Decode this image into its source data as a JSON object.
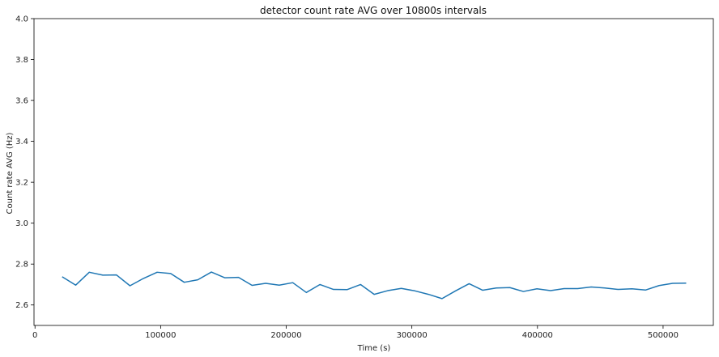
{
  "chart_data": {
    "type": "line",
    "title": "detector count rate AVG over 10800s intervals",
    "xlabel": "Time (s)",
    "ylabel": "Count rate AVG (Hz)",
    "xlim": [
      -800,
      540000
    ],
    "ylim": [
      2.5,
      4.0
    ],
    "xticks": [
      0,
      100000,
      200000,
      300000,
      400000,
      500000
    ],
    "xtick_labels": [
      "0",
      "100000",
      "200000",
      "300000",
      "400000",
      "500000"
    ],
    "yticks": [
      2.6,
      2.8,
      3.0,
      3.2,
      3.4,
      3.6,
      3.8,
      4.0
    ],
    "ytick_labels": [
      "2.6",
      "2.8",
      "3.0",
      "3.2",
      "3.4",
      "3.6",
      "3.8",
      "4.0"
    ],
    "grid": false,
    "series": [
      {
        "color": "#1f77b4",
        "x": [
          21600,
          32400,
          43200,
          54000,
          64800,
          75600,
          86400,
          97200,
          108000,
          118800,
          129600,
          140400,
          151200,
          162000,
          172800,
          183600,
          194400,
          205200,
          216000,
          226800,
          237600,
          248400,
          259200,
          270000,
          280800,
          291600,
          302400,
          313200,
          324000,
          334800,
          345600,
          356400,
          367200,
          378000,
          388800,
          399600,
          410400,
          421200,
          432000,
          442800,
          453600,
          464400,
          475200,
          486000,
          496800,
          507600,
          518400
        ],
        "y": [
          2.738,
          2.697,
          2.76,
          2.746,
          2.747,
          2.694,
          2.73,
          2.76,
          2.754,
          2.711,
          2.723,
          2.761,
          2.733,
          2.735,
          2.696,
          2.706,
          2.697,
          2.709,
          2.661,
          2.7,
          2.676,
          2.675,
          2.7,
          2.652,
          2.67,
          2.681,
          2.669,
          2.652,
          2.631,
          2.669,
          2.704,
          2.672,
          2.683,
          2.685,
          2.666,
          2.679,
          2.67,
          2.68,
          2.68,
          2.688,
          2.683,
          2.676,
          2.679,
          2.673,
          2.695,
          2.706,
          2.707
        ]
      }
    ]
  }
}
